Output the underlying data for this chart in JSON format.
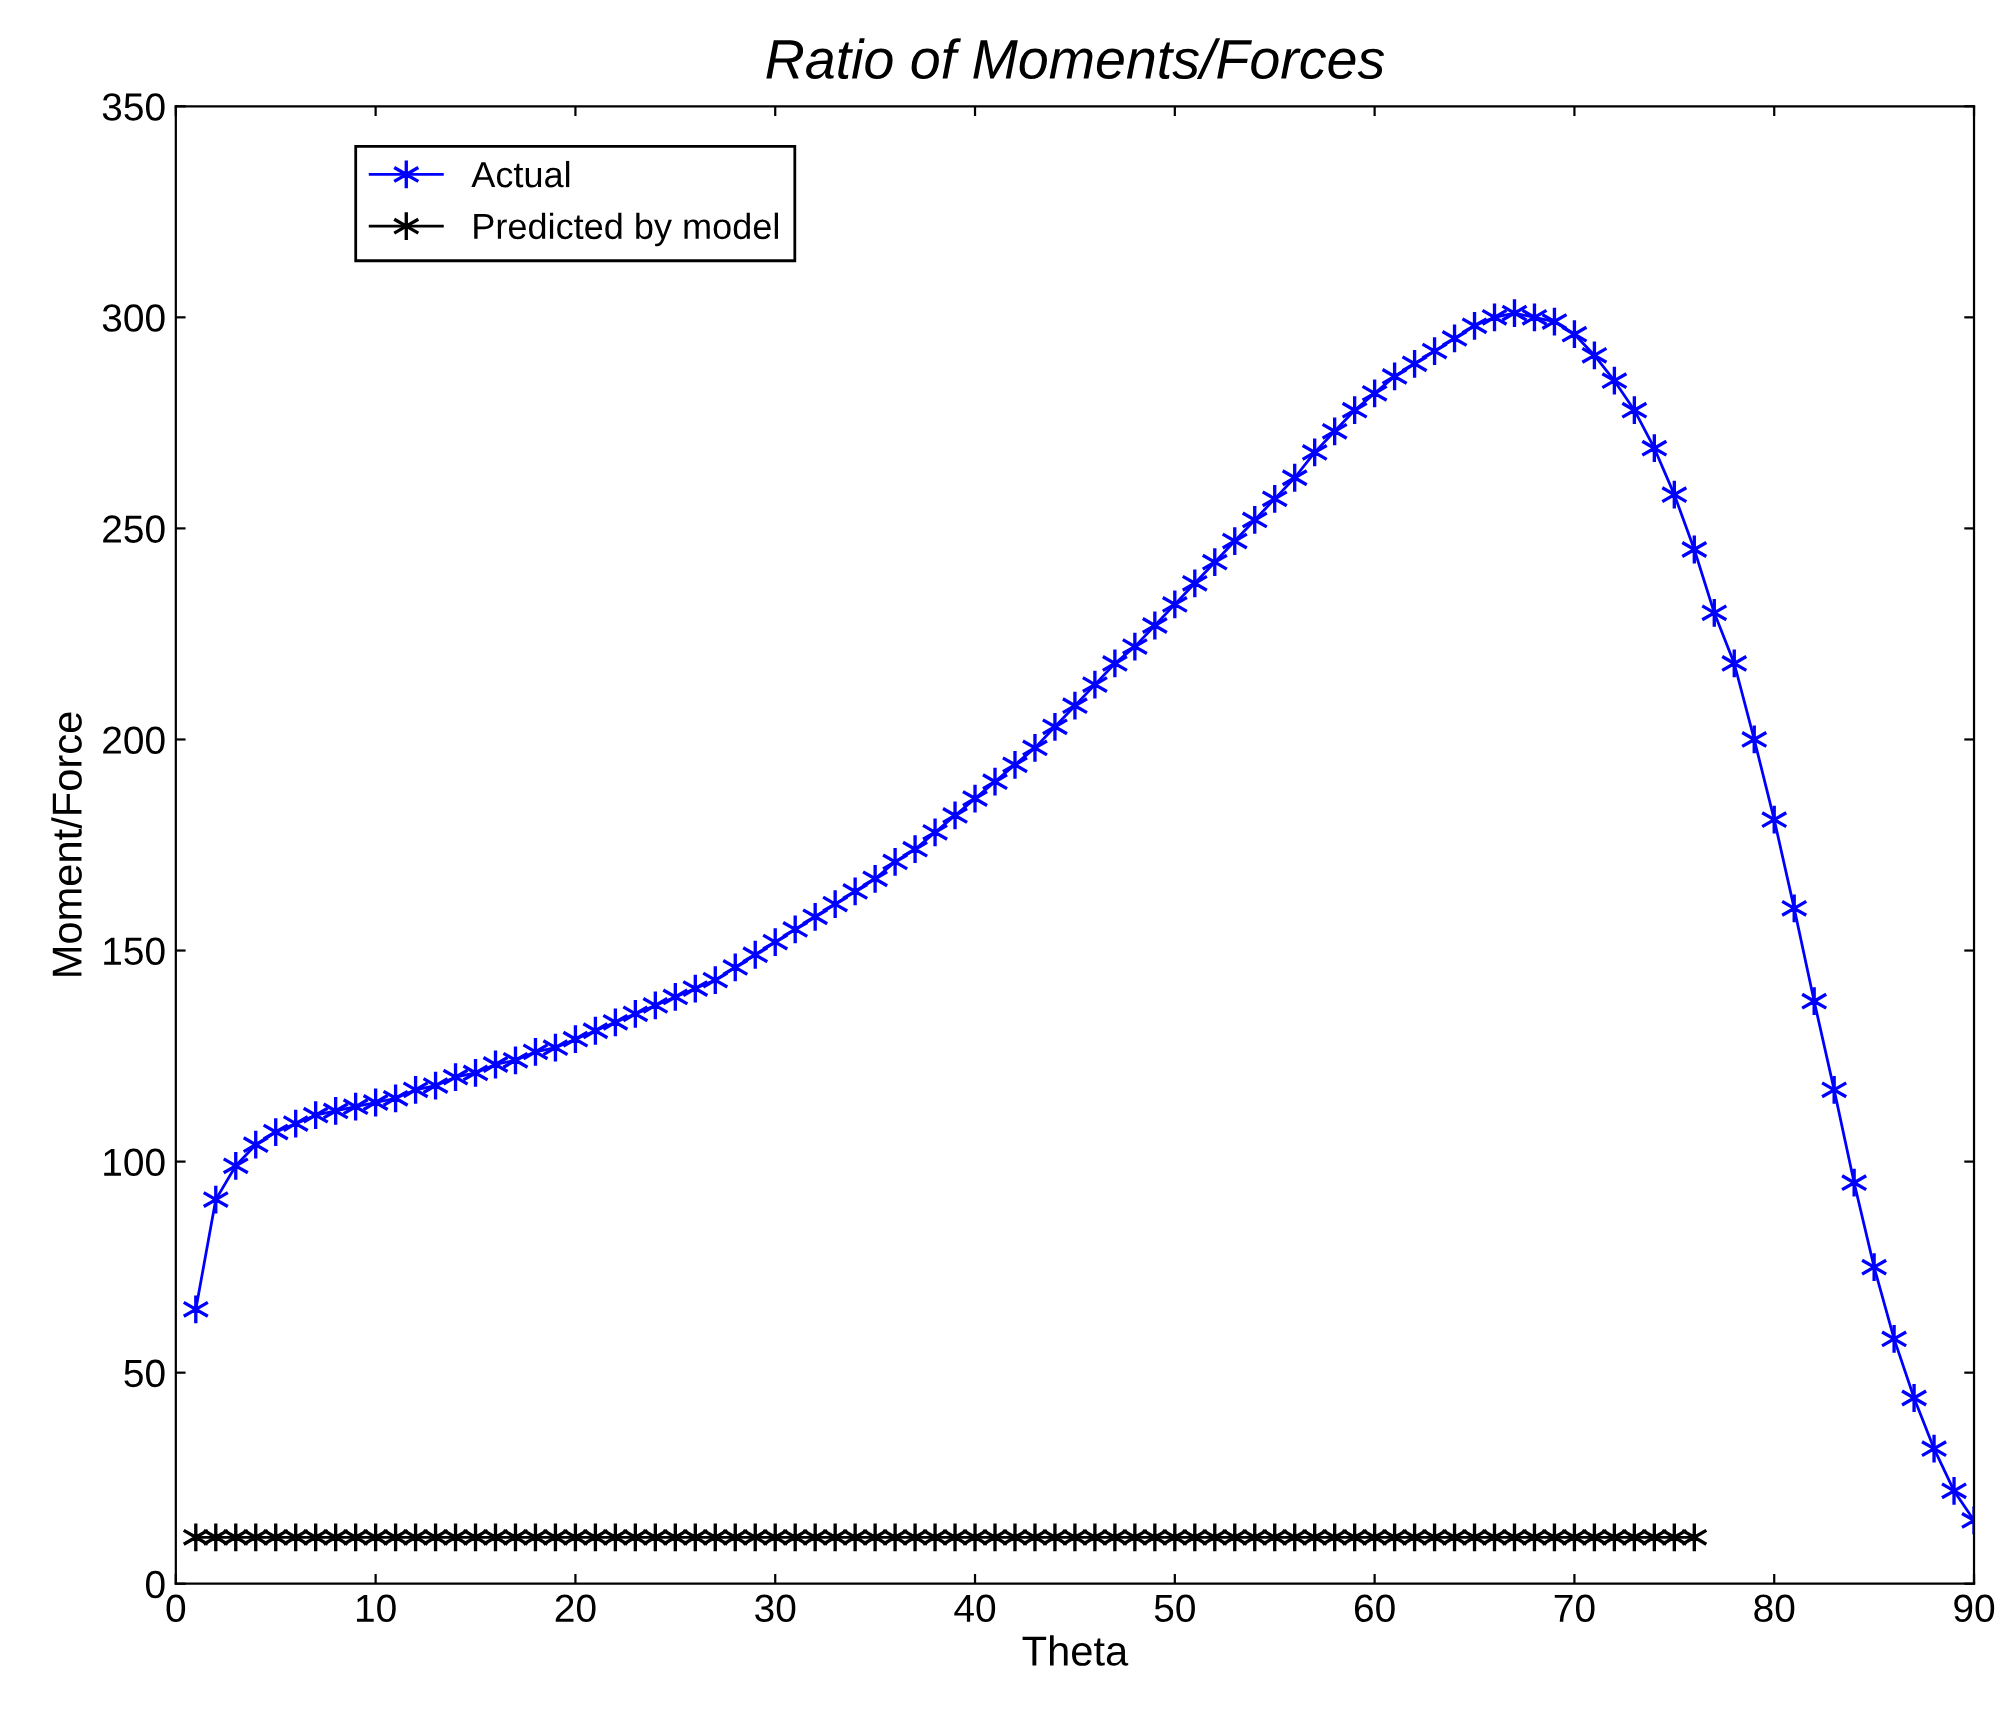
{
  "chart_data": {
    "type": "line",
    "title": "Ratio of Moments/Forces",
    "xlabel": "Theta",
    "ylabel": "Moment/Force",
    "xlim": [
      0,
      90
    ],
    "ylim": [
      0,
      350
    ],
    "xticks": [
      0,
      10,
      20,
      30,
      40,
      50,
      60,
      70,
      80,
      90
    ],
    "yticks": [
      0,
      50,
      100,
      150,
      200,
      250,
      300,
      350
    ],
    "grid": false,
    "legend": "top left",
    "marker": "cross",
    "line_style": "solid",
    "series": [
      {
        "name": "Actual",
        "color": "#0000ff",
        "x": [
          1,
          2,
          3,
          4,
          5,
          6,
          7,
          8,
          9,
          10,
          11,
          12,
          13,
          14,
          15,
          16,
          17,
          18,
          19,
          20,
          21,
          22,
          23,
          24,
          25,
          26,
          27,
          28,
          29,
          30,
          31,
          32,
          33,
          34,
          35,
          36,
          37,
          38,
          39,
          40,
          41,
          42,
          43,
          44,
          45,
          46,
          47,
          48,
          49,
          50,
          51,
          52,
          53,
          54,
          55,
          56,
          57,
          58,
          59,
          60,
          61,
          62,
          63,
          64,
          65,
          66,
          67,
          68,
          69,
          70,
          71,
          72,
          73,
          74,
          75,
          76,
          77,
          78,
          79,
          80,
          81,
          82,
          83,
          84,
          85,
          86,
          87,
          88,
          89,
          90
        ],
        "values": [
          65,
          91,
          99,
          104,
          107,
          109,
          111,
          112,
          113,
          114,
          115,
          117,
          118,
          120,
          121,
          123,
          124,
          126,
          127,
          129,
          131,
          133,
          135,
          137,
          139,
          141,
          143,
          146,
          149,
          152,
          155,
          158,
          161,
          164,
          167,
          171,
          174,
          178,
          182,
          186,
          190,
          194,
          198,
          203,
          208,
          213,
          218,
          222,
          227,
          232,
          237,
          242,
          247,
          252,
          257,
          262,
          268,
          273,
          278,
          282,
          286,
          289,
          292,
          295,
          298,
          300,
          301,
          300,
          299,
          296,
          291,
          285,
          278,
          269,
          258,
          245,
          230,
          218,
          200,
          181,
          160,
          138,
          117,
          95,
          75,
          58,
          44,
          32,
          22,
          15
        ]
      },
      {
        "name": "Predicted by model",
        "color": "#000000",
        "x": [
          1,
          2,
          3,
          4,
          5,
          6,
          7,
          8,
          9,
          10,
          11,
          12,
          13,
          14,
          15,
          16,
          17,
          18,
          19,
          20,
          21,
          22,
          23,
          24,
          25,
          26,
          27,
          28,
          29,
          30,
          31,
          32,
          33,
          34,
          35,
          36,
          37,
          38,
          39,
          40,
          41,
          42,
          43,
          44,
          45,
          46,
          47,
          48,
          49,
          50,
          51,
          52,
          53,
          54,
          55,
          56,
          57,
          58,
          59,
          60,
          61,
          62,
          63,
          64,
          65,
          66,
          67,
          68,
          69,
          70,
          71,
          72,
          73,
          74,
          75,
          76
        ],
        "values": [
          11,
          11,
          11,
          11,
          11,
          11,
          11,
          11,
          11,
          11,
          11,
          11,
          11,
          11,
          11,
          11,
          11,
          11,
          11,
          11,
          11,
          11,
          11,
          11,
          11,
          11,
          11,
          11,
          11,
          11,
          11,
          11,
          11,
          11,
          11,
          11,
          11,
          11,
          11,
          11,
          11,
          11,
          11,
          11,
          11,
          11,
          11,
          11,
          11,
          11,
          11,
          11,
          11,
          11,
          11,
          11,
          11,
          11,
          11,
          11,
          11,
          11,
          11,
          11,
          11,
          11,
          11,
          11,
          11,
          11,
          11,
          11,
          11,
          11,
          11,
          11
        ]
      }
    ]
  }
}
